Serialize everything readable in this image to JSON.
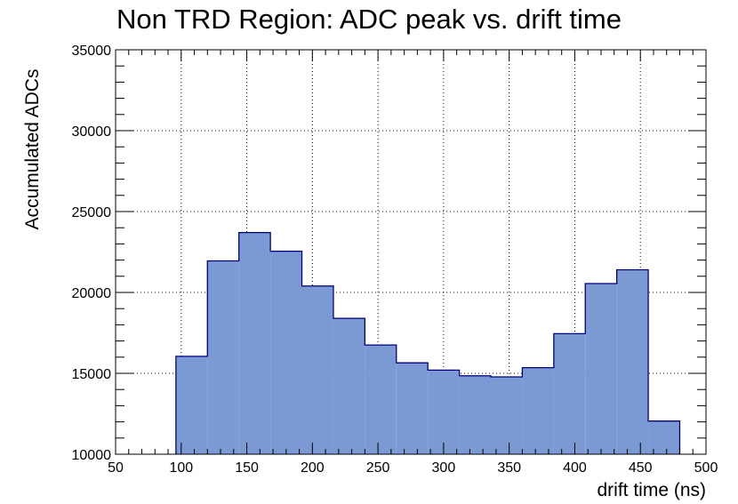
{
  "chart_data": {
    "type": "bar",
    "title": "Non TRD Region: ADC peak vs. drift time",
    "xlabel": "drift time (ns)",
    "ylabel": "Accumulated ADCs",
    "xlim": [
      50,
      500
    ],
    "ylim": [
      10000,
      35000
    ],
    "grid": true,
    "bin_width": 24,
    "bin_edges": [
      96,
      120,
      144,
      168,
      192,
      216,
      240,
      264,
      288,
      312,
      336,
      360,
      384,
      408,
      432,
      456,
      480
    ],
    "values": [
      16050,
      21950,
      23700,
      22550,
      20400,
      18400,
      16750,
      15650,
      15200,
      14850,
      14780,
      15350,
      17450,
      20550,
      21400,
      12050
    ],
    "x_ticks": [
      "50",
      "100",
      "150",
      "200",
      "250",
      "300",
      "350",
      "400",
      "450",
      "500"
    ],
    "y_ticks": [
      "10000",
      "15000",
      "20000",
      "25000",
      "30000",
      "35000"
    ],
    "colors": {
      "fill": "#7b99d2",
      "edge": "#000080",
      "grid": "#000000",
      "frame": "#000000"
    }
  }
}
